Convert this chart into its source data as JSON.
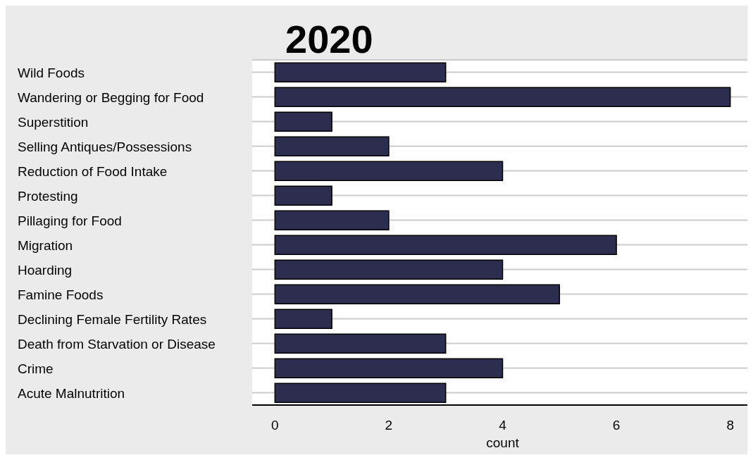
{
  "chart_data": {
    "type": "bar",
    "orientation": "horizontal",
    "title": "2020",
    "xlabel": "count",
    "categories": [
      "Wild Foods",
      "Wandering or Begging for Food",
      "Superstition",
      "Selling Antiques/Possessions",
      "Reduction of Food Intake",
      "Protesting",
      "Pillaging for Food",
      "Migration",
      "Hoarding",
      "Famine Foods",
      "Declining Female Fertility Rates",
      "Death from Starvation or Disease",
      "Crime",
      "Acute Malnutrition"
    ],
    "values": [
      3,
      8,
      1,
      2,
      4,
      1,
      2,
      6,
      4,
      5,
      1,
      3,
      4,
      3
    ],
    "color": "#2d2d50",
    "xlim": [
      -0.4,
      8.4
    ],
    "xticks": [
      0,
      2,
      4,
      6,
      8
    ],
    "grid": "y"
  }
}
